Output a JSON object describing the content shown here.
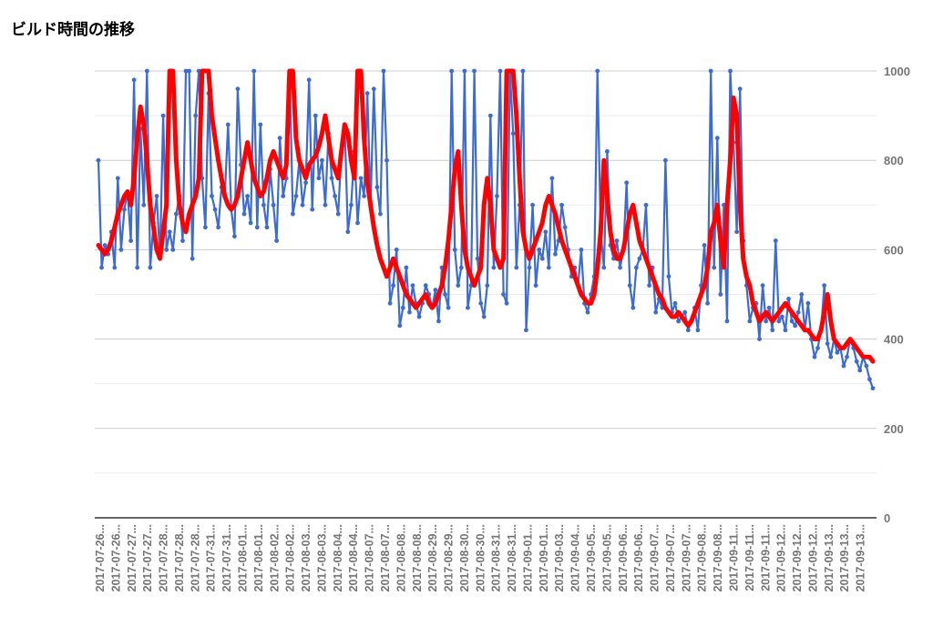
{
  "chart_data": {
    "type": "line",
    "title": "ビルド時間の推移",
    "xlabel": "",
    "ylabel": "",
    "ylim": [
      0,
      1000
    ],
    "y_ticks": [
      "0",
      "200",
      "400",
      "600",
      "800",
      "1000"
    ],
    "y_axis_side": "right",
    "grid": true,
    "legend": "none",
    "x_tick_labels": [
      "2017-07-26...",
      "2017-07-26...",
      "2017-07-27...",
      "2017-07-27...",
      "2017-07-28...",
      "2017-07-28...",
      "2017-07-28...",
      "2017-07-31...",
      "2017-07-31...",
      "2017-08-01...",
      "2017-08-01...",
      "2017-08-02...",
      "2017-08-02...",
      "2017-08-03...",
      "2017-08-03...",
      "2017-08-04...",
      "2017-08-04...",
      "2017-08-07...",
      "2017-08-07...",
      "2017-08-08...",
      "2017-08-08...",
      "2017-08-29...",
      "2017-08-29...",
      "2017-08-30...",
      "2017-08-30...",
      "2017-08-31...",
      "2017-08-31...",
      "2017-09-01...",
      "2017-09-01...",
      "2017-09-03...",
      "2017-09-04...",
      "2017-09-05...",
      "2017-09-05...",
      "2017-09-06...",
      "2017-09-06...",
      "2017-09-07...",
      "2017-09-07...",
      "2017-09-07...",
      "2017-09-08...",
      "2017-09-08...",
      "2017-09-11...",
      "2017-09-11...",
      "2017-09-11...",
      "2017-09-12...",
      "2017-09-12...",
      "2017-09-12...",
      "2017-09-13...",
      "2017-09-13...",
      "2017-09-13..."
    ],
    "series": [
      {
        "color": "#3d6bd4",
        "values": [
          800,
          560,
          610,
          590,
          640,
          560,
          760,
          600,
          690,
          730,
          620,
          980,
          560,
          870,
          700,
          1000,
          560,
          660,
          720,
          580,
          900,
          600,
          640,
          600,
          680,
          720,
          620,
          1000,
          1000,
          580,
          900,
          1000,
          760,
          650,
          950,
          720,
          690,
          650,
          740,
          720,
          880,
          690,
          630,
          960,
          790,
          680,
          720,
          660,
          1000,
          650,
          880,
          700,
          650,
          780,
          700,
          620,
          850,
          720,
          760,
          1000,
          680,
          720,
          800,
          700,
          750,
          980,
          690,
          900,
          760,
          800,
          700,
          860,
          760,
          720,
          680,
          820,
          880,
          640,
          700,
          820,
          660,
          760,
          720,
          950,
          700,
          960,
          740,
          680,
          1000,
          800,
          480,
          520,
          600,
          430,
          470,
          560,
          460,
          520,
          480,
          450,
          480,
          520,
          500,
          470,
          510,
          440,
          560,
          500,
          470,
          1000,
          600,
          520,
          560,
          1000,
          470,
          520,
          1000,
          580,
          480,
          450,
          520,
          900,
          560,
          720,
          1000,
          500,
          480,
          1000,
          860,
          560,
          700,
          1000,
          420,
          560,
          700,
          520,
          600,
          580,
          640,
          560,
          760,
          590,
          620,
          700,
          650,
          600,
          540,
          560,
          520,
          600,
          480,
          460,
          500,
          540,
          1000,
          640,
          560,
          820,
          610,
          580,
          620,
          560,
          600,
          750,
          520,
          470,
          560,
          580,
          600,
          700,
          520,
          560,
          460,
          490,
          470,
          800,
          540,
          460,
          480,
          440,
          450,
          460,
          420,
          440,
          470,
          420,
          520,
          610,
          480,
          1000,
          560,
          850,
          500,
          700,
          440,
          1000,
          840,
          640,
          960,
          620,
          520,
          440,
          470,
          480,
          400,
          520,
          440,
          470,
          420,
          620,
          440,
          450,
          420,
          490,
          440,
          430,
          460,
          500,
          420,
          480,
          400,
          360,
          380,
          420,
          520,
          390,
          360,
          400,
          370,
          380,
          340,
          360,
          400,
          380,
          350,
          330,
          360,
          340,
          310,
          290
        ]
      },
      {
        "color": "#ff0000",
        "values": [
          610,
          600,
          590,
          600,
          620,
          650,
          680,
          700,
          720,
          730,
          700,
          760,
          850,
          920,
          880,
          800,
          700,
          650,
          600,
          580,
          640,
          700,
          1000,
          1000,
          800,
          700,
          660,
          640,
          680,
          700,
          720,
          760,
          1000,
          1000,
          1000,
          900,
          850,
          800,
          760,
          720,
          700,
          690,
          700,
          720,
          760,
          800,
          840,
          800,
          760,
          740,
          720,
          730,
          760,
          800,
          820,
          800,
          780,
          760,
          790,
          1000,
          1000,
          850,
          800,
          780,
          760,
          790,
          800,
          810,
          830,
          860,
          900,
          850,
          800,
          780,
          760,
          820,
          880,
          860,
          800,
          760,
          1000,
          1000,
          850,
          750,
          700,
          650,
          610,
          580,
          560,
          540,
          560,
          580,
          560,
          540,
          520,
          500,
          490,
          480,
          470,
          480,
          490,
          500,
          480,
          470,
          480,
          500,
          520,
          560,
          620,
          700,
          780,
          820,
          700,
          600,
          560,
          540,
          520,
          540,
          560,
          700,
          760,
          700,
          600,
          580,
          560,
          580,
          1000,
          1000,
          1000,
          900,
          760,
          640,
          600,
          580,
          600,
          620,
          640,
          660,
          700,
          720,
          700,
          680,
          650,
          620,
          600,
          580,
          560,
          540,
          520,
          500,
          490,
          480,
          480,
          500,
          560,
          640,
          800,
          720,
          640,
          600,
          580,
          580,
          600,
          640,
          680,
          700,
          660,
          620,
          600,
          580,
          560,
          540,
          520,
          500,
          490,
          470,
          460,
          450,
          450,
          460,
          450,
          440,
          430,
          440,
          460,
          480,
          500,
          520,
          560,
          640,
          660,
          700,
          620,
          560,
          700,
          800,
          940,
          900,
          700,
          580,
          540,
          520,
          480,
          460,
          440,
          450,
          460,
          450,
          440,
          450,
          460,
          470,
          480,
          470,
          460,
          450,
          440,
          430,
          420,
          420,
          410,
          400,
          400,
          420,
          460,
          500,
          440,
          400,
          390,
          380,
          380,
          390,
          400,
          390,
          380,
          370,
          360,
          360,
          360,
          350
        ]
      }
    ]
  }
}
